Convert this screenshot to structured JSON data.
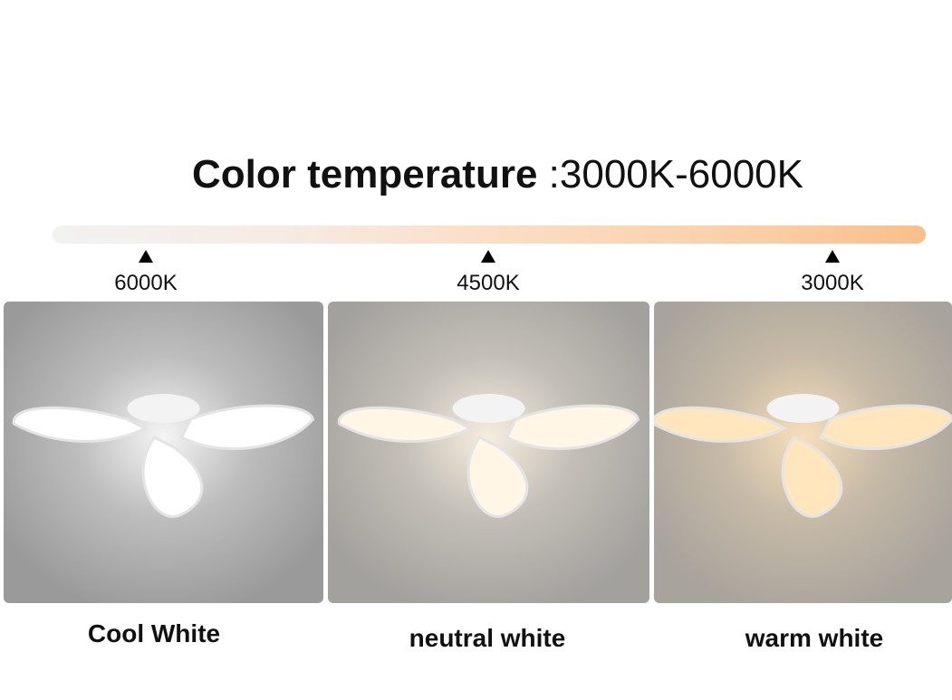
{
  "header": {
    "title": "Color temperature",
    "range": ":3000K-6000K"
  },
  "scale": {
    "gradient_colors": [
      "#f2f2f2",
      "#f9bf8a"
    ],
    "markers": [
      {
        "label": "6000K",
        "icon": "triangle-up-icon"
      },
      {
        "label": "4500K",
        "icon": "triangle-up-icon"
      },
      {
        "label": "3000K",
        "icon": "triangle-up-icon"
      }
    ]
  },
  "panels": [
    {
      "label": "Cool White",
      "glow": "#ffffff",
      "bg": "#9a9a9a"
    },
    {
      "label": "neutral white",
      "glow": "#fff6e6",
      "bg": "#a3a19e"
    },
    {
      "label": "warm white",
      "glow": "#ffe6bd",
      "bg": "#a8a39c"
    }
  ]
}
